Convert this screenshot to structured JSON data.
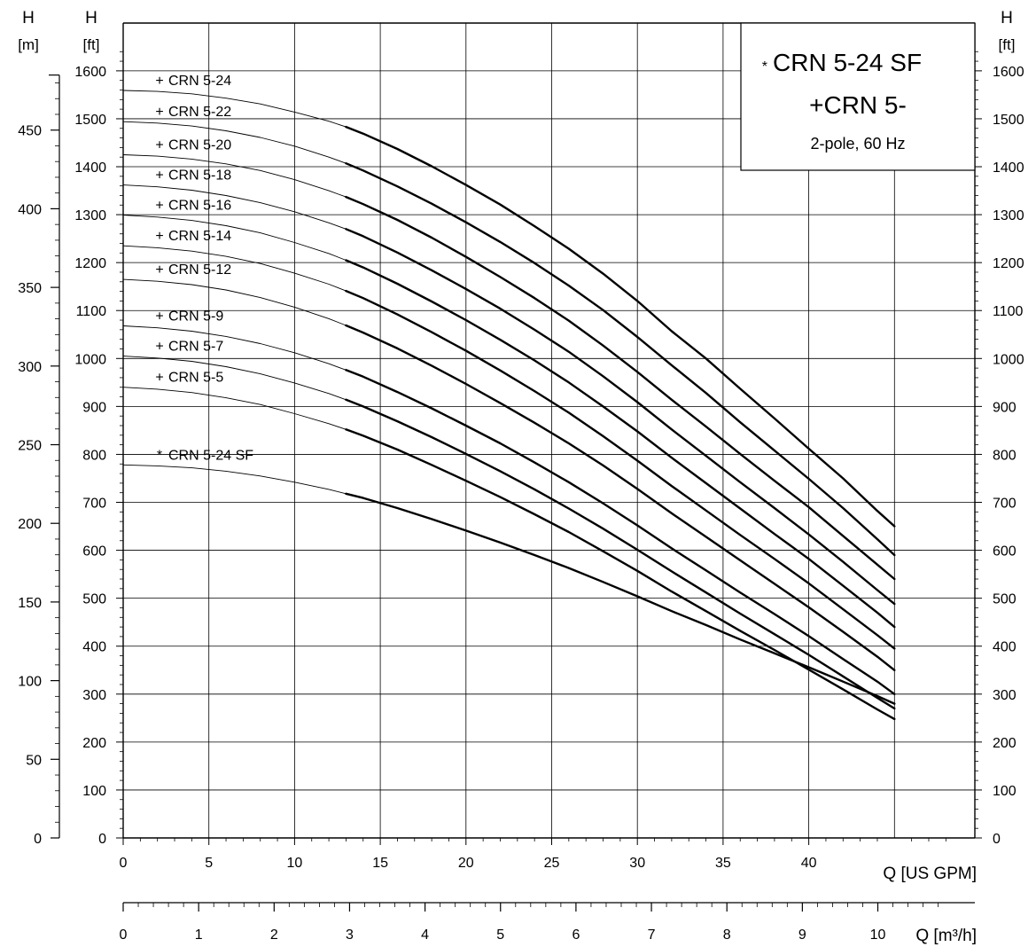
{
  "chart_data": {
    "type": "line",
    "legend": {
      "line1_mark": "*",
      "line1": "CRN 5-24 SF",
      "line2": "+CRN 5-",
      "line3": "2-pole, 60 Hz"
    },
    "x": [
      0,
      2,
      4,
      6,
      8,
      10,
      12,
      13,
      14,
      16,
      18,
      20,
      22,
      24,
      26,
      28,
      30,
      32,
      34,
      36,
      38,
      40,
      42,
      44,
      45
    ],
    "x_axis_gpm": {
      "label": "Q [US GPM]",
      "min": 0,
      "max": 48.5,
      "ticks": [
        0,
        5,
        10,
        15,
        20,
        25,
        30,
        35,
        40
      ],
      "tick_labels": [
        "0",
        "5",
        "10",
        "15",
        "20",
        "25",
        "30",
        "35",
        "40"
      ]
    },
    "x_axis_m3h": {
      "label": "Q [m³/h]",
      "ticks": [
        0,
        1,
        2,
        3,
        4,
        5,
        6,
        7,
        8,
        9,
        10
      ],
      "tick_labels": [
        "0",
        "1",
        "2",
        "3",
        "4",
        "5",
        "6",
        "7",
        "8",
        "9",
        "10"
      ]
    },
    "y_axis_ft": {
      "label_top": "H",
      "label_unit": "[ft]",
      "min": 0,
      "max": 1650,
      "ticks": [
        0,
        100,
        200,
        300,
        400,
        500,
        600,
        700,
        800,
        900,
        1000,
        1100,
        1200,
        1300,
        1400,
        1500,
        1600
      ],
      "tick_labels": [
        "0",
        "100",
        "200",
        "300",
        "400",
        "500",
        "600",
        "700",
        "800",
        "900",
        "1000",
        "1100",
        "1200",
        "1300",
        "1400",
        "1500",
        "1600"
      ]
    },
    "y_axis_m": {
      "label_top": "H",
      "label_unit": "[m]",
      "ticks": [
        0,
        50,
        100,
        150,
        200,
        250,
        300,
        350,
        400,
        450
      ],
      "tick_labels": [
        "0",
        "50",
        "100",
        "150",
        "200",
        "250",
        "300",
        "350",
        "400",
        "450"
      ]
    },
    "y_axis_ft_right": {
      "label_top": "H",
      "label_unit": "[ft]"
    },
    "grid": true,
    "series": [
      {
        "name": "CRN 5-24",
        "mark": "+",
        "values": [
          1559,
          1557,
          1552,
          1543,
          1531,
          1514,
          1495,
          1483,
          1469,
          1437,
          1401,
          1362,
          1321,
          1276,
          1229,
          1177,
          1120,
          1057,
          1000,
          937,
          875,
          812,
          750,
          682,
          650
        ]
      },
      {
        "name": "CRN 5-22",
        "mark": "+",
        "values": [
          1494,
          1491,
          1485,
          1475,
          1461,
          1443,
          1420,
          1407,
          1392,
          1359,
          1323,
          1284,
          1243,
          1199,
          1152,
          1101,
          1045,
          986,
          928,
          867,
          808,
          749,
          688,
          623,
          590
        ]
      },
      {
        "name": "CRN 5-20",
        "mark": "+",
        "values": [
          1425,
          1422,
          1416,
          1406,
          1392,
          1373,
          1350,
          1337,
          1322,
          1289,
          1252,
          1212,
          1170,
          1126,
          1079,
          1027,
          972,
          914,
          858,
          801,
          745,
          690,
          630,
          570,
          540
        ]
      },
      {
        "name": "CRN 5-18",
        "mark": "+",
        "values": [
          1362,
          1358,
          1351,
          1340,
          1325,
          1306,
          1283,
          1270,
          1255,
          1221,
          1184,
          1145,
          1104,
          1060,
          1014,
          963,
          909,
          852,
          797,
          742,
          688,
          633,
          576,
          517,
          488
        ]
      },
      {
        "name": "CRN 5-16",
        "mark": "+",
        "values": [
          1299,
          1295,
          1288,
          1277,
          1262,
          1242,
          1219,
          1205,
          1190,
          1156,
          1119,
          1080,
          1039,
          996,
          950,
          900,
          848,
          793,
          740,
          687,
          634,
          582,
          526,
          470,
          440
        ]
      },
      {
        "name": "CRN 5-14",
        "mark": "+",
        "values": [
          1235,
          1231,
          1224,
          1213,
          1198,
          1178,
          1155,
          1141,
          1126,
          1092,
          1055,
          1016,
          975,
          932,
          887,
          838,
          787,
          734,
          683,
          632,
          582,
          531,
          477,
          423,
          395
        ]
      },
      {
        "name": "CRN 5-12",
        "mark": "+",
        "values": [
          1165,
          1161,
          1154,
          1143,
          1127,
          1107,
          1083,
          1069,
          1054,
          1021,
          985,
          947,
          907,
          866,
          823,
          777,
          728,
          677,
          628,
          579,
          530,
          481,
          430,
          378,
          350
        ]
      },
      {
        "name": "CRN 5-9",
        "mark": "+",
        "values": [
          1068,
          1064,
          1057,
          1046,
          1031,
          1012,
          989,
          976,
          962,
          930,
          896,
          860,
          823,
          783,
          742,
          698,
          652,
          604,
          558,
          512,
          467,
          421,
          373,
          326,
          300
        ]
      },
      {
        "name": "CRN 5-7",
        "mark": "+",
        "values": [
          1005,
          1001,
          994,
          983,
          968,
          949,
          927,
          914,
          900,
          869,
          836,
          801,
          765,
          727,
          687,
          645,
          601,
          556,
          512,
          468,
          425,
          382,
          337,
          292,
          270
        ]
      },
      {
        "name": "CRN 5-5",
        "mark": "+",
        "values": [
          940,
          936,
          929,
          918,
          904,
          885,
          864,
          852,
          839,
          810,
          778,
          745,
          711,
          675,
          638,
          598,
          557,
          514,
          473,
          432,
          392,
          351,
          310,
          268,
          248
        ]
      },
      {
        "name": "CRN 5-24 SF",
        "mark": "*",
        "values": [
          778,
          776,
          772,
          765,
          755,
          742,
          727,
          718,
          709,
          688,
          665,
          641,
          616,
          590,
          563,
          534,
          504,
          473,
          444,
          414,
          385,
          356,
          326,
          296,
          280
        ]
      }
    ]
  }
}
